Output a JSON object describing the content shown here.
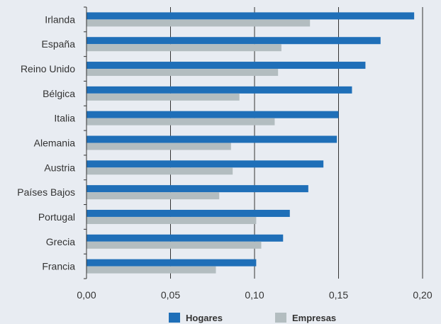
{
  "chart_data": {
    "type": "bar",
    "orientation": "horizontal",
    "categories": [
      "Irlanda",
      "España",
      "Reino Unido",
      "Bélgica",
      "Italia",
      "Alemania",
      "Austria",
      "Países Bajos",
      "Portugal",
      "Grecia",
      "Francia"
    ],
    "series": [
      {
        "name": "Hogares",
        "color": "#1f6fb8",
        "values": [
          0.195,
          0.175,
          0.166,
          0.158,
          0.15,
          0.149,
          0.141,
          0.132,
          0.121,
          0.117,
          0.101
        ]
      },
      {
        "name": "Empresas",
        "color": "#b3bdc0",
        "values": [
          0.133,
          0.116,
          0.114,
          0.091,
          0.112,
          0.086,
          0.087,
          0.079,
          0.101,
          0.104,
          0.077
        ]
      }
    ],
    "xlim": [
      0,
      0.2
    ],
    "xticks": [
      0,
      0.05,
      0.1,
      0.15,
      0.2
    ],
    "xtick_labels": [
      "0,00",
      "0,05",
      "0,10",
      "0,15",
      "0,20"
    ],
    "title": "",
    "xlabel": "",
    "ylabel": "",
    "grid": "vertical",
    "legend_position": "bottom",
    "background": "#e8ecf2"
  }
}
